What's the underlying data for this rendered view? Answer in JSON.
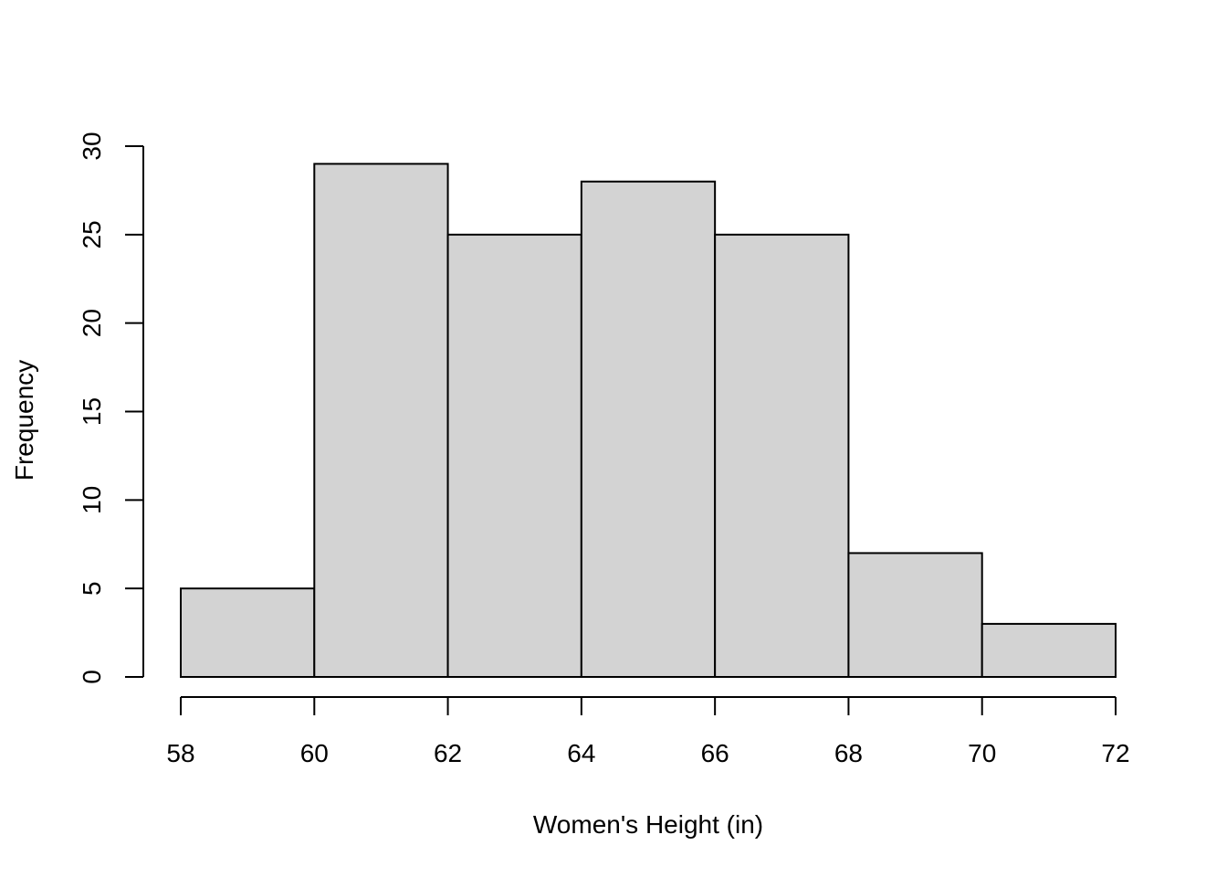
{
  "chart_data": {
    "type": "bar",
    "title": "",
    "xlabel": "Women's Height (in)",
    "ylabel": "Frequency",
    "bins": [
      {
        "from": 58,
        "to": 60,
        "count": 5
      },
      {
        "from": 60,
        "to": 62,
        "count": 29
      },
      {
        "from": 62,
        "to": 64,
        "count": 25
      },
      {
        "from": 64,
        "to": 66,
        "count": 28
      },
      {
        "from": 66,
        "to": 68,
        "count": 25
      },
      {
        "from": 68,
        "to": 70,
        "count": 7
      },
      {
        "from": 70,
        "to": 72,
        "count": 3
      }
    ],
    "x_ticks": [
      "58",
      "60",
      "62",
      "64",
      "66",
      "68",
      "70",
      "72"
    ],
    "y_ticks": [
      "0",
      "5",
      "10",
      "15",
      "20",
      "25",
      "30"
    ],
    "xlim": [
      58,
      72
    ],
    "ylim": [
      0,
      30
    ],
    "grid": false,
    "colors": {
      "bar_fill": "#d3d3d3",
      "bar_stroke": "#000000"
    }
  }
}
